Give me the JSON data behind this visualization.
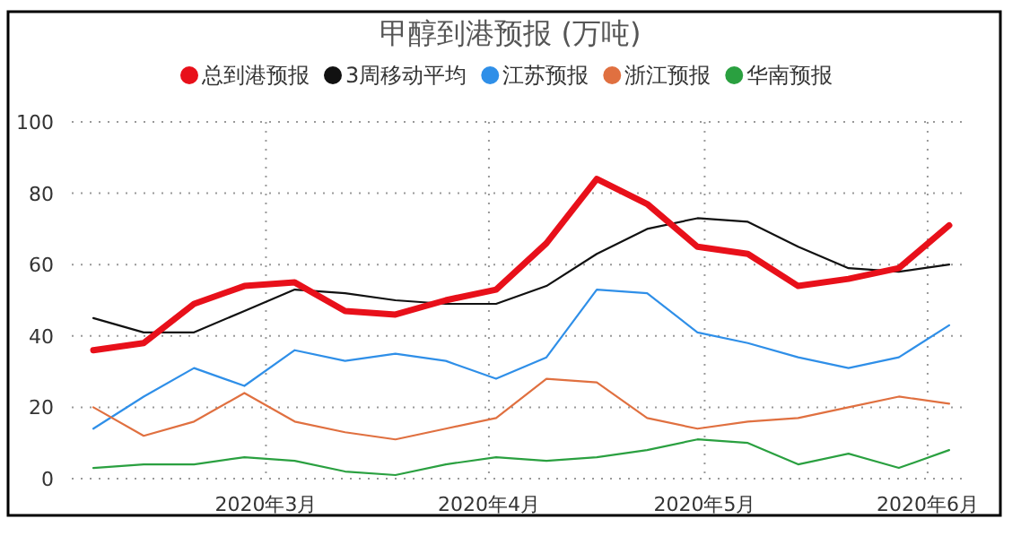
{
  "chart_data": {
    "type": "line",
    "title": "甲醇到港预报 (万吨)",
    "x": [
      "2020-02-06",
      "2020-02-13",
      "2020-02-20",
      "2020-02-27",
      "2020-03-05",
      "2020-03-12",
      "2020-03-19",
      "2020-03-26",
      "2020-04-02",
      "2020-04-09",
      "2020-04-16",
      "2020-04-23",
      "2020-04-30",
      "2020-05-07",
      "2020-05-14",
      "2020-05-21",
      "2020-05-28",
      "2020-06-04"
    ],
    "series": [
      {
        "name": "总到港预报",
        "color": "#e8101a",
        "values": [
          36,
          38,
          49,
          54,
          55,
          47,
          46,
          50,
          53,
          66,
          84,
          77,
          65,
          63,
          54,
          56,
          59,
          71
        ]
      },
      {
        "name": "3周移动平均",
        "color": "#111111",
        "values": [
          45,
          41,
          41,
          47,
          53,
          52,
          50,
          49,
          49,
          54,
          63,
          70,
          73,
          72,
          65,
          59,
          58,
          60
        ]
      },
      {
        "name": "江苏预报",
        "color": "#2f8fe8",
        "values": [
          14,
          23,
          31,
          26,
          36,
          33,
          35,
          33,
          28,
          34,
          53,
          52,
          41,
          38,
          34,
          31,
          34,
          43
        ]
      },
      {
        "name": "浙江预报",
        "color": "#e07040",
        "values": [
          20,
          12,
          16,
          24,
          16,
          13,
          11,
          14,
          17,
          28,
          27,
          17,
          14,
          16,
          17,
          20,
          23,
          21
        ]
      },
      {
        "name": "华南预报",
        "color": "#2aa040",
        "values": [
          3,
          4,
          4,
          6,
          5,
          2,
          1,
          4,
          6,
          5,
          6,
          8,
          11,
          10,
          4,
          7,
          3,
          8
        ]
      }
    ],
    "xlim": [
      "2020-02-03",
      "2020-06-06"
    ],
    "xticks": [
      {
        "value": "2020-03-01",
        "label": "2020年3月"
      },
      {
        "value": "2020-04-01",
        "label": "2020年4月"
      },
      {
        "value": "2020-05-01",
        "label": "2020年5月"
      },
      {
        "value": "2020-06-01",
        "label": "2020年6月"
      }
    ],
    "ylim": [
      0,
      100
    ],
    "yticks": [
      0,
      20,
      40,
      60,
      80,
      100
    ],
    "grid": true,
    "legend": "top",
    "marker": "none",
    "line_style": "solid"
  }
}
